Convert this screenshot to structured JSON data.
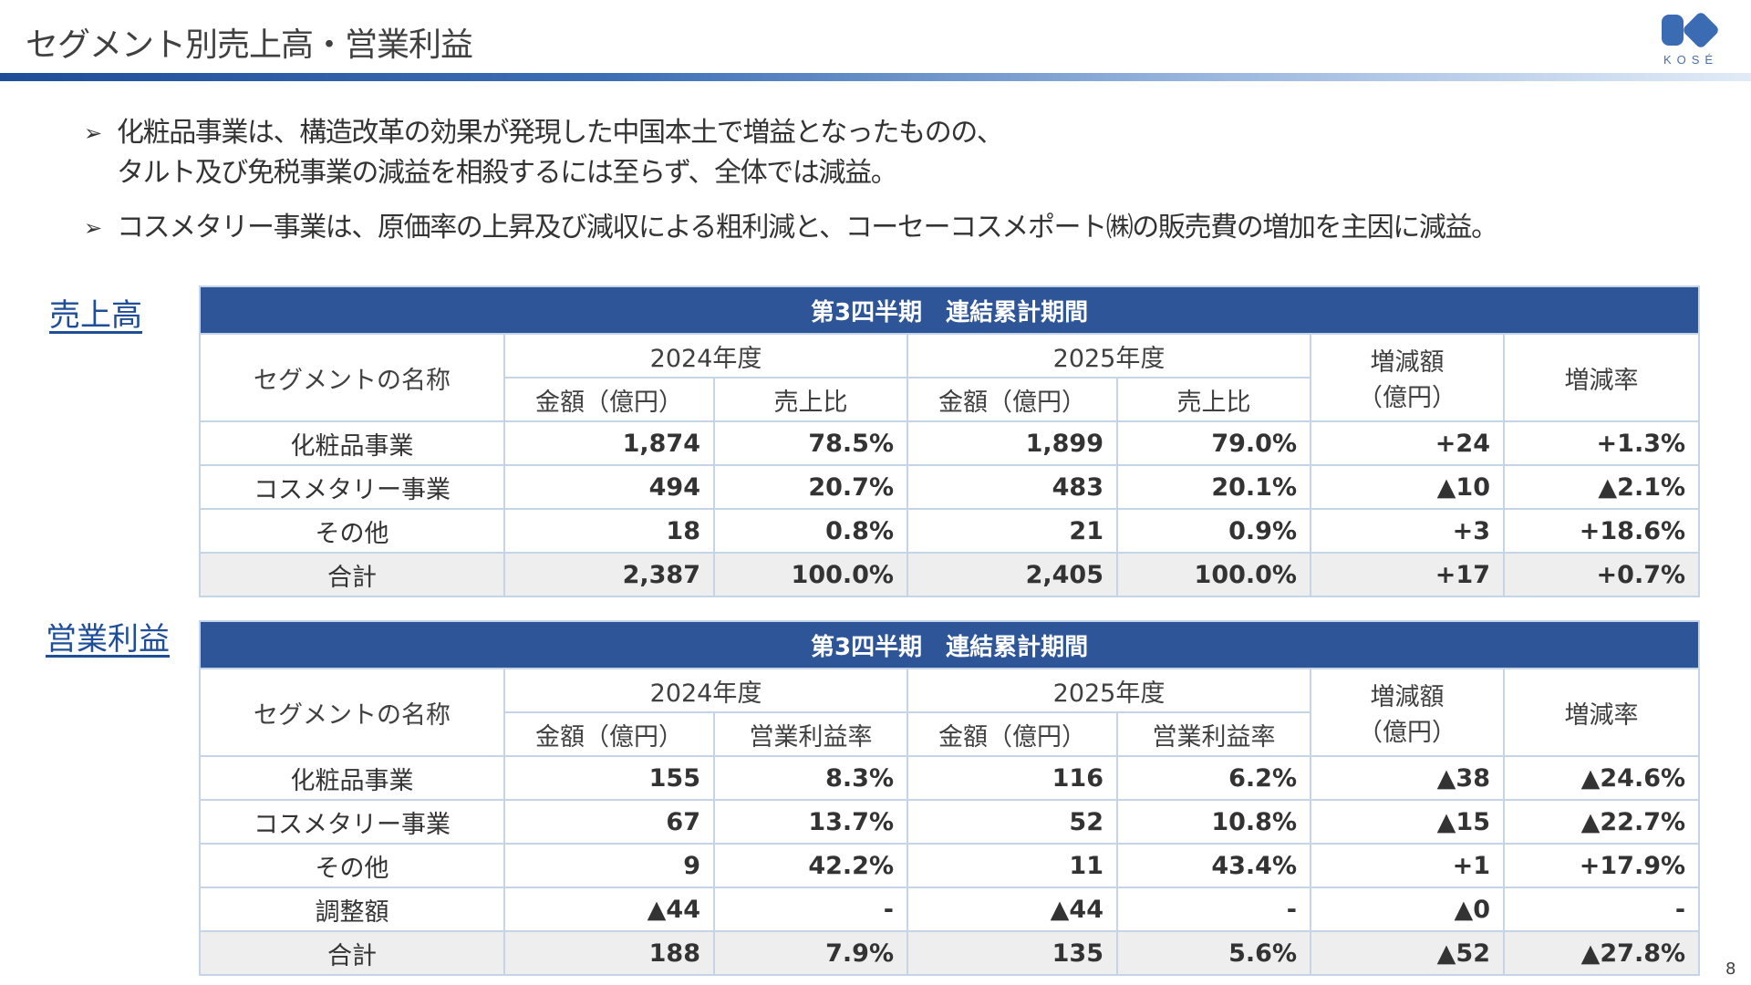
{
  "header": {
    "title": "セグメント別売上高・営業利益",
    "logo_text": "KOSÉ"
  },
  "bullets": [
    {
      "marker": "➢",
      "lines": [
        "化粧品事業は、構造改革の効果が発現した中国本土で増益となったものの、",
        "タルト及び免税事業の減益を相殺するには至らず、全体では減益。"
      ]
    },
    {
      "marker": "➢",
      "lines": [
        "コスメタリー事業は、原価率の上昇及び減収による粗利減と、コーセーコスメポート㈱の販売費の増加を主因に減益。"
      ]
    }
  ],
  "sales": {
    "label": "売上高",
    "period": "第3四半期　連結累計期間",
    "headers": {
      "segment": "セグメントの名称",
      "year_prev": "2024年度",
      "year_curr": "2025年度",
      "amount": "金額（億円）",
      "ratio": "売上比",
      "change_amount_line1": "増減額",
      "change_amount_line2": "（億円）",
      "change_rate": "増減率"
    },
    "rows": [
      {
        "name": "化粧品事業",
        "prev_amount": "1,874",
        "prev_ratio": "78.5%",
        "curr_amount": "1,899",
        "curr_ratio": "79.0%",
        "change": "+24",
        "rate": "+1.3%"
      },
      {
        "name": "コスメタリー事業",
        "prev_amount": "494",
        "prev_ratio": "20.7%",
        "curr_amount": "483",
        "curr_ratio": "20.1%",
        "change": "▲10",
        "rate": "▲2.1%"
      },
      {
        "name": "その他",
        "prev_amount": "18",
        "prev_ratio": "0.8%",
        "curr_amount": "21",
        "curr_ratio": "0.9%",
        "change": "+3",
        "rate": "+18.6%"
      },
      {
        "name": "合計",
        "prev_amount": "2,387",
        "prev_ratio": "100.0%",
        "curr_amount": "2,405",
        "curr_ratio": "100.0%",
        "change": "+17",
        "rate": "+0.7%"
      }
    ]
  },
  "profit": {
    "label": "営業利益",
    "period": "第3四半期　連結累計期間",
    "headers": {
      "segment": "セグメントの名称",
      "year_prev": "2024年度",
      "year_curr": "2025年度",
      "amount": "金額（億円）",
      "ratio": "営業利益率",
      "change_amount_line1": "増減額",
      "change_amount_line2": "（億円）",
      "change_rate": "増減率"
    },
    "rows": [
      {
        "name": "化粧品事業",
        "prev_amount": "155",
        "prev_ratio": "8.3%",
        "curr_amount": "116",
        "curr_ratio": "6.2%",
        "change": "▲38",
        "rate": "▲24.6%"
      },
      {
        "name": "コスメタリー事業",
        "prev_amount": "67",
        "prev_ratio": "13.7%",
        "curr_amount": "52",
        "curr_ratio": "10.8%",
        "change": "▲15",
        "rate": "▲22.7%"
      },
      {
        "name": "その他",
        "prev_amount": "9",
        "prev_ratio": "42.2%",
        "curr_amount": "11",
        "curr_ratio": "43.4%",
        "change": "+1",
        "rate": "+17.9%"
      },
      {
        "name": "調整額",
        "prev_amount": "▲44",
        "prev_ratio": "-",
        "curr_amount": "▲44",
        "curr_ratio": "-",
        "change": "▲0",
        "rate": "-"
      },
      {
        "name": "合計",
        "prev_amount": "188",
        "prev_ratio": "7.9%",
        "curr_amount": "135",
        "curr_ratio": "5.6%",
        "change": "▲52",
        "rate": "▲27.8%"
      }
    ]
  },
  "footer": {
    "page_number": "8"
  }
}
